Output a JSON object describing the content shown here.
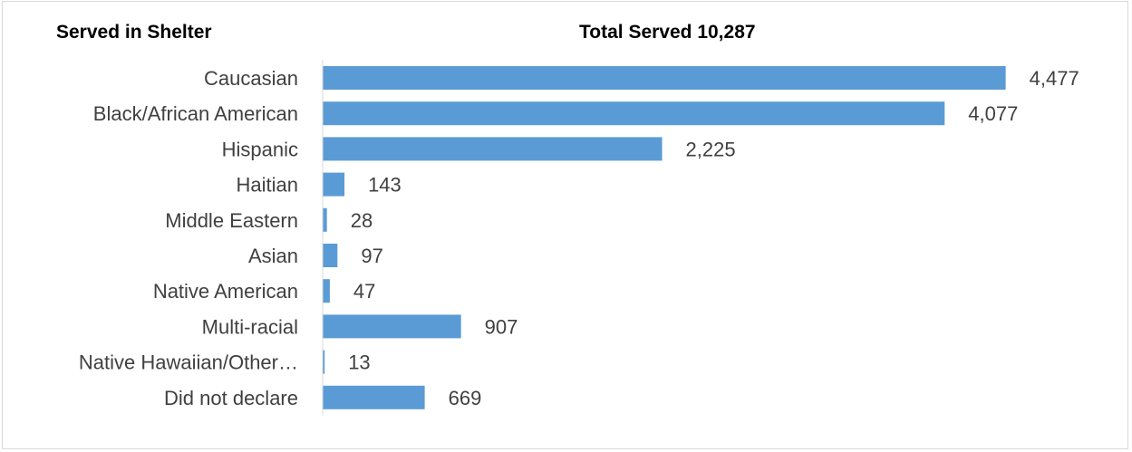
{
  "header": {
    "left_title": "Served in Shelter"
  },
  "chart_data": {
    "type": "bar",
    "orientation": "horizontal",
    "title": "Total Served 10,287",
    "categories": [
      "Caucasian",
      "Black/African American",
      "Hispanic",
      "Haitian",
      "Middle Eastern",
      "Asian",
      "Native American",
      "Multi-racial",
      "Native Hawaiian/Other…",
      "Did not declare"
    ],
    "values": [
      4477,
      4077,
      2225,
      143,
      28,
      97,
      47,
      907,
      13,
      669
    ],
    "value_labels": [
      "4,477",
      "4,077",
      "2,225",
      "143",
      "28",
      "97",
      "47",
      "907",
      "13",
      "669"
    ],
    "xlim": [
      0,
      4800
    ],
    "grid": false,
    "legend": "none",
    "colors": {
      "bar": "#5b9bd5",
      "axis": "#d9d9d9",
      "text": "#404040"
    }
  }
}
